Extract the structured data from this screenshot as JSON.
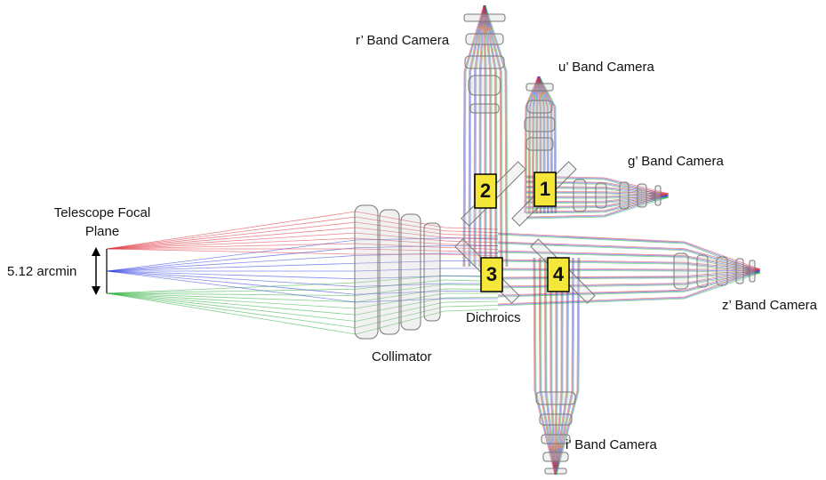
{
  "focal_plane": {
    "title_lines": [
      "Telescope Focal",
      "Plane"
    ],
    "field": "5.12 arcmin"
  },
  "cameras": [
    {
      "label": "r’ Band Camera"
    },
    {
      "label": "u’ Band Camera"
    },
    {
      "label": "g’ Band Camera"
    },
    {
      "label": "z’ Band Camera"
    },
    {
      "label": "i’ Band Camera"
    }
  ],
  "dichroics": {
    "label": "Dichroics",
    "markers": [
      "1",
      "2",
      "3",
      "4"
    ]
  },
  "collimator": {
    "label": "Collimator"
  }
}
